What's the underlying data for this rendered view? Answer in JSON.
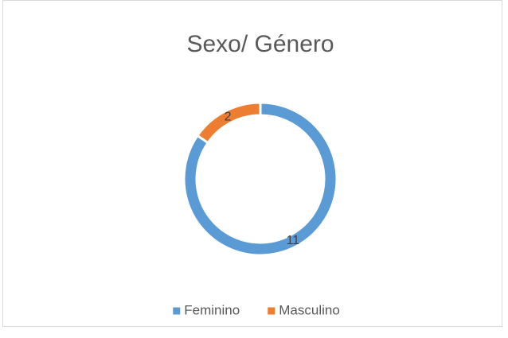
{
  "chart_data": {
    "type": "donut",
    "title": "Sexo/ Género",
    "categories": [
      "Feminino",
      "Masculino"
    ],
    "values": [
      11,
      2
    ],
    "colors": [
      "#5b9bd5",
      "#ed7d31"
    ],
    "legend": "bottom"
  }
}
